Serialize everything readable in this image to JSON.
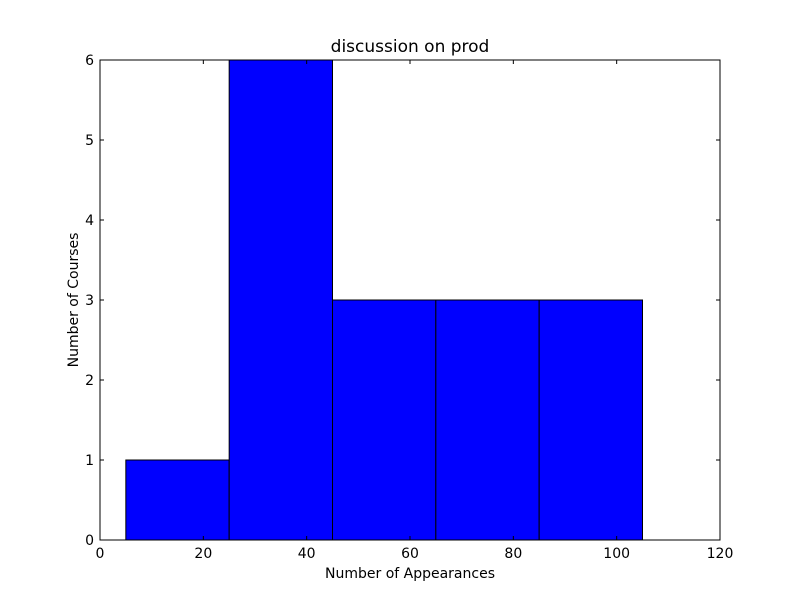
{
  "chart_data": {
    "type": "bar",
    "title": "discussion on prod",
    "xlabel": "Number of Appearances",
    "ylabel": "Number of Courses",
    "xlim": [
      0,
      120
    ],
    "ylim": [
      0,
      6
    ],
    "xticks": [
      "0",
      "20",
      "40",
      "60",
      "80",
      "100",
      "120"
    ],
    "yticks": [
      "0",
      "1",
      "2",
      "3",
      "4",
      "5",
      "6"
    ],
    "bins": [
      {
        "x0": 5,
        "x1": 25,
        "count": 1
      },
      {
        "x0": 25,
        "x1": 45,
        "count": 6
      },
      {
        "x0": 45,
        "x1": 65,
        "count": 3
      },
      {
        "x0": 65,
        "x1": 85,
        "count": 3
      },
      {
        "x0": 85,
        "x1": 105,
        "count": 3
      }
    ],
    "bar_color": "#0000ff",
    "edge_color": "#000000",
    "grid": false,
    "legend": "none"
  }
}
